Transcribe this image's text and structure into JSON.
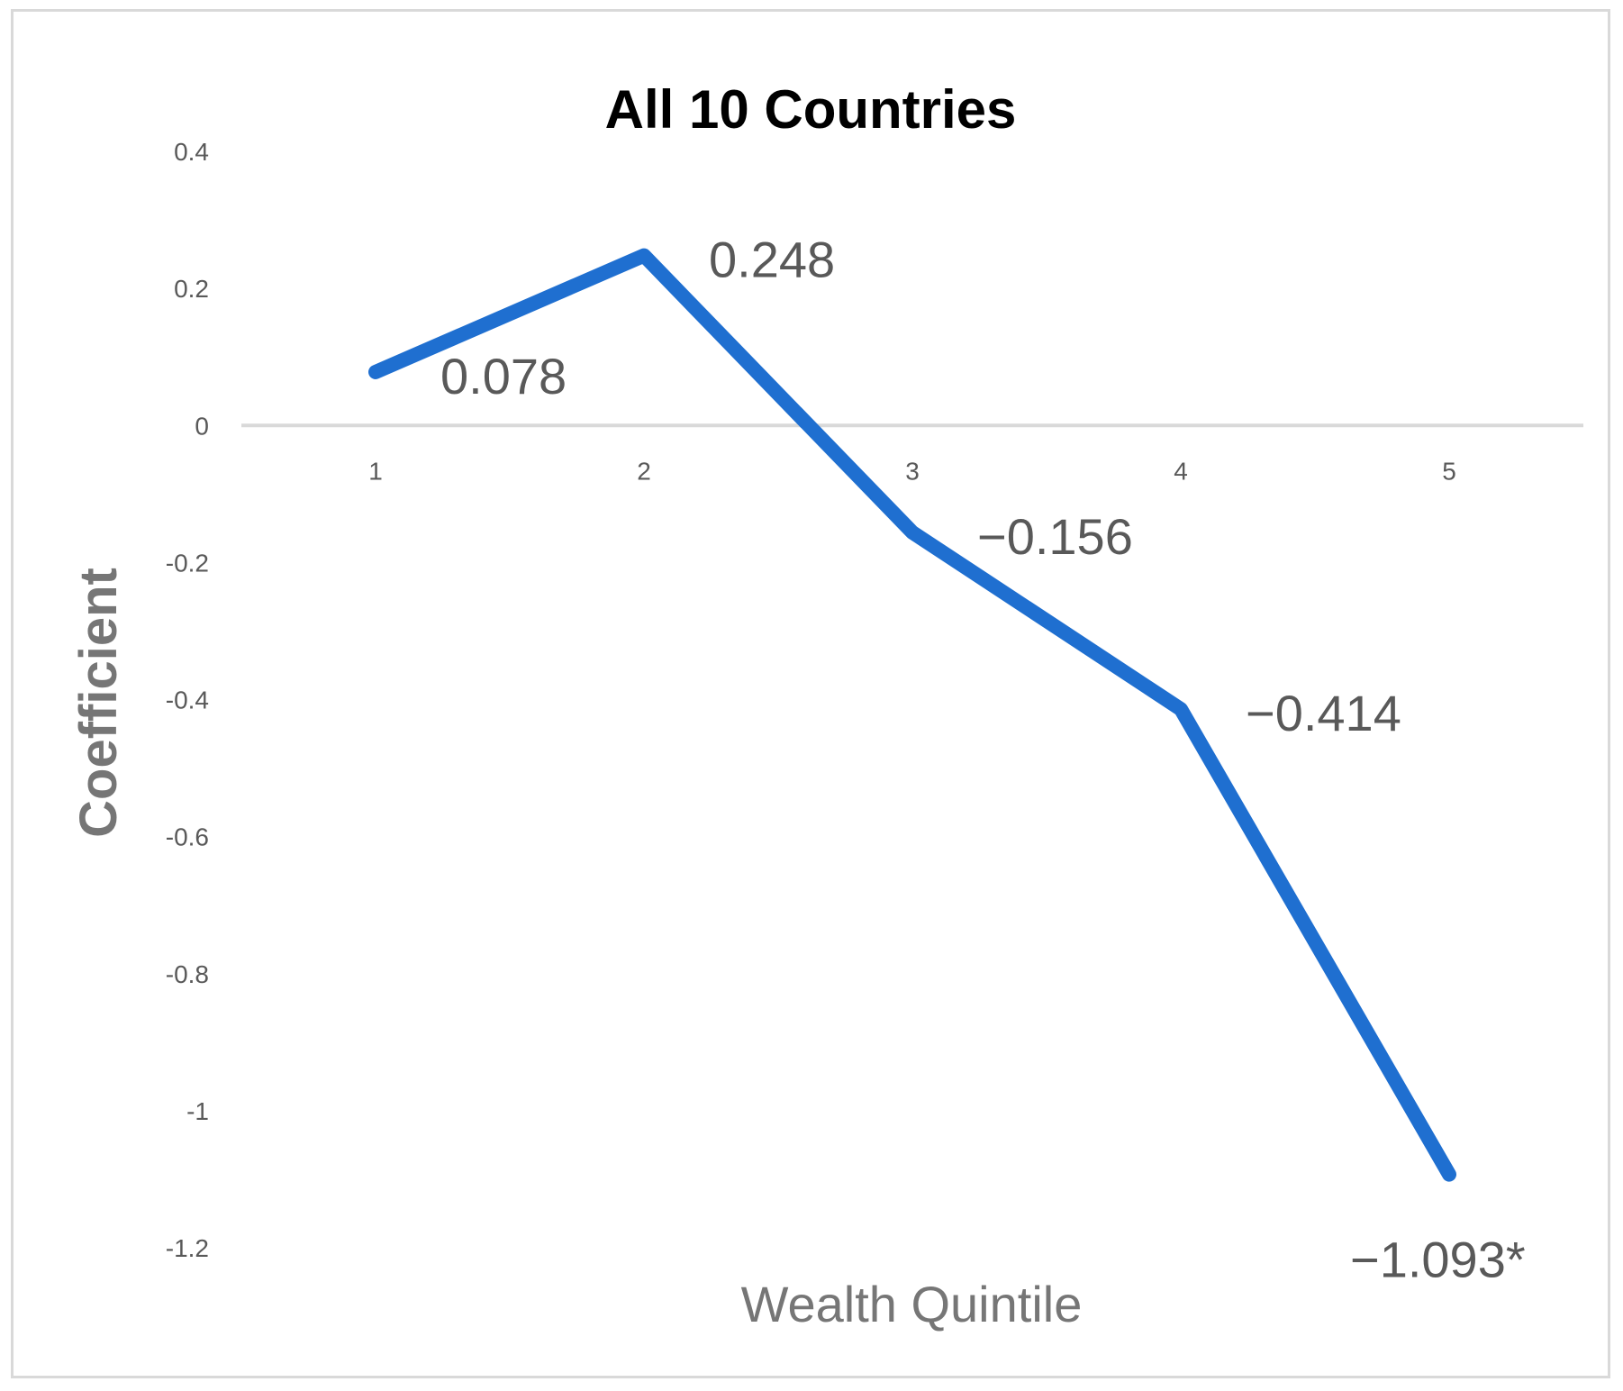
{
  "chart_data": {
    "type": "line",
    "title": "All 10 Countries",
    "xlabel": "Wealth Quintile",
    "ylabel": "Coefficient",
    "categories": [
      "1",
      "2",
      "3",
      "4",
      "5"
    ],
    "series": [
      {
        "values": [
          0.078,
          0.248,
          -0.156,
          -0.414,
          -1.093
        ],
        "data_labels": [
          "0.078",
          "0.248",
          "−0.156",
          "−0.414",
          "−1.093*"
        ],
        "color": "#1f6fd0"
      }
    ],
    "ylim": [
      -1.2,
      0.4
    ],
    "yticks": [
      "0.4",
      "0.2",
      "0",
      "-0.2",
      "-0.4",
      "-0.6",
      "-0.8",
      "-1",
      "-1.2"
    ],
    "ytick_values": [
      0.4,
      0.2,
      0,
      -0.2,
      -0.4,
      -0.6,
      -0.8,
      -1,
      -1.2
    ],
    "grid": false,
    "legend": "none",
    "zero_line_color": "#d9d9d9"
  }
}
